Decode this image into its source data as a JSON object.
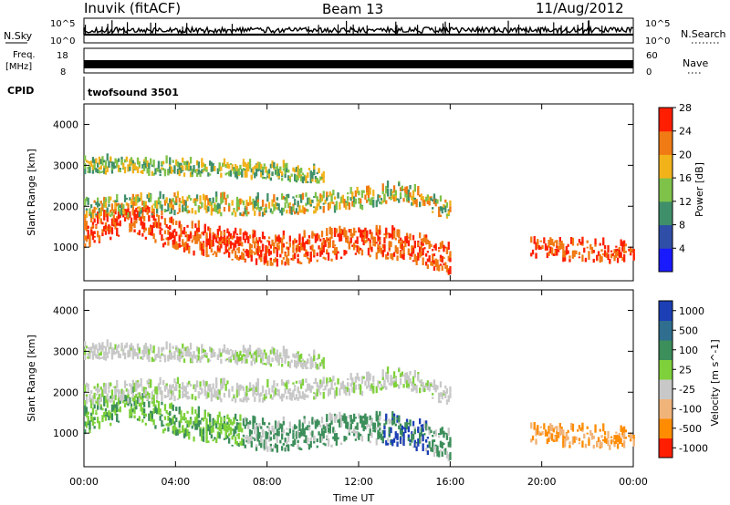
{
  "header": {
    "station": "Inuvik (fitACF)",
    "beam": "Beam 13",
    "date": "11/Aug/2012"
  },
  "noise_panel": {
    "left_label": "N.Sky",
    "right_label": "N.Search",
    "ticks": [
      "10^5",
      "10^0"
    ]
  },
  "freq_panel": {
    "left_label_1": "Freq.",
    "left_label_2": "[MHz]",
    "left_ticks": [
      "18",
      "8"
    ],
    "right_label": "Nave",
    "right_ticks": [
      "60",
      "0"
    ]
  },
  "cpid_panel": {
    "label": "CPID",
    "program": "twofsound 3501"
  },
  "chart_data": [
    {
      "type": "heatmap",
      "parameter": "Power",
      "ylabel": "Slant Range [km]",
      "yticks": [
        "1000",
        "2000",
        "3000",
        "4000"
      ],
      "ylim": [
        180,
        4500
      ],
      "colorbar_label": "Power [dB]",
      "colorbar_ticks": [
        "4",
        "8",
        "12",
        "16",
        "20",
        "24",
        "28"
      ],
      "colorbar_colors": [
        "#1a1aff",
        "#2e4ea8",
        "#3f8f6a",
        "#7ec24a",
        "#f2b21a",
        "#f07a14",
        "#ff1e00"
      ],
      "echo_bands": [
        {
          "name": "near_range_strong",
          "x": [
            "00:00",
            "02:00",
            "04:00",
            "06:00",
            "08:00",
            "10:00",
            "12:00",
            "14:00",
            "16:00"
          ],
          "y": [
            1300,
            1700,
            1200,
            1050,
            850,
            950,
            1050,
            1000,
            600
          ]
        },
        {
          "name": "mid_range",
          "x": [
            "00:00",
            "04:00",
            "08:00",
            "12:00",
            "14:00",
            "16:00"
          ],
          "y": [
            1900,
            2000,
            1950,
            2100,
            2300,
            1800
          ]
        },
        {
          "name": "far_range_weak",
          "x": [
            "00:00",
            "04:00",
            "08:00",
            "10:00"
          ],
          "y": [
            2950,
            2900,
            2800,
            2700
          ]
        },
        {
          "name": "evening_strong",
          "x": [
            "20:00",
            "22:00",
            "00:00"
          ],
          "y": [
            900,
            850,
            800
          ]
        }
      ]
    },
    {
      "type": "heatmap",
      "parameter": "Velocity",
      "ylabel": "Slant Range [km]",
      "yticks": [
        "1000",
        "2000",
        "3000",
        "4000"
      ],
      "ylim": [
        180,
        4500
      ],
      "colorbar_label": "Velocity [m s^-1]",
      "colorbar_ticks": [
        "1000",
        "500",
        "100",
        "25",
        "-25",
        "-100",
        "-500",
        "-1000"
      ],
      "colorbar_colors": [
        "#1c3fb5",
        "#2f6e8e",
        "#3c8e5a",
        "#7ed13a",
        "#c8c8c8",
        "#f0b37a",
        "#ff8c00",
        "#ff1e00"
      ],
      "xlabel": "Time UT",
      "xticks": [
        "00:00",
        "04:00",
        "08:00",
        "12:00",
        "16:00",
        "20:00",
        "00:00"
      ]
    }
  ]
}
